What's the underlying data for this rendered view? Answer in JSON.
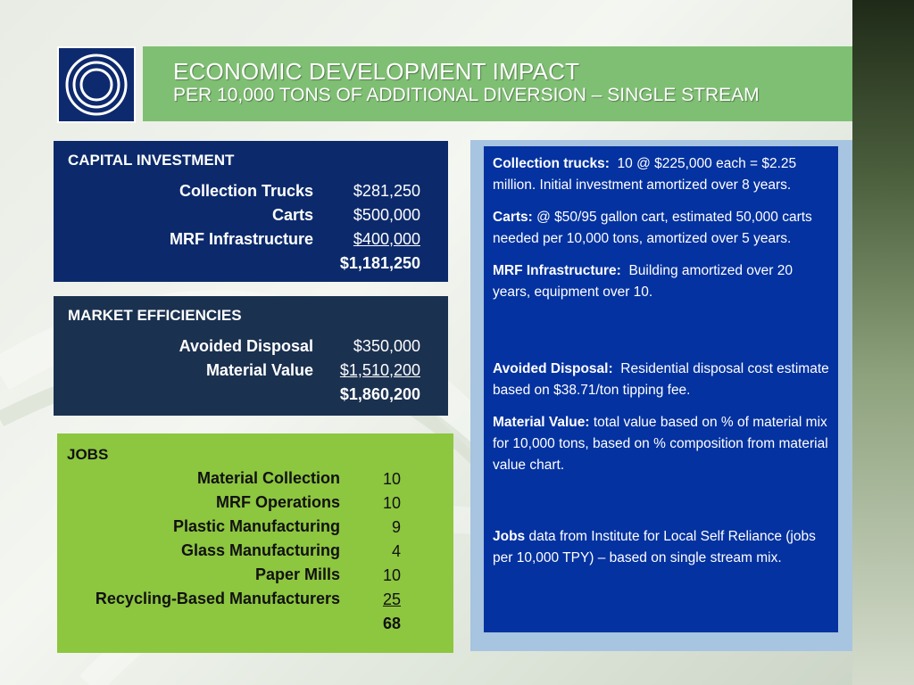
{
  "title": {
    "line1": "ECONOMIC DEVELOPMENT IMPACT",
    "line2": "PER 10,000 TONS OF ADDITIONAL DIVERSION – SINGLE STREAM"
  },
  "capital": {
    "heading": "CAPITAL INVESTMENT",
    "rows": [
      {
        "label": "Collection Trucks",
        "value": "$281,250"
      },
      {
        "label": "Carts",
        "value": "$500,000"
      },
      {
        "label": "MRF Infrastructure",
        "value": "$400,000"
      }
    ],
    "total": "$1,181,250"
  },
  "market": {
    "heading": "MARKET EFFICIENCIES",
    "rows": [
      {
        "label": "Avoided Disposal",
        "value": "$350,000"
      },
      {
        "label": "Material Value",
        "value": "$1,510,200"
      }
    ],
    "total": "$1,860,200"
  },
  "jobs": {
    "heading": "JOBS",
    "rows": [
      {
        "label": "Material Collection",
        "value": "10"
      },
      {
        "label": "MRF Operations",
        "value": "10"
      },
      {
        "label": "Plastic Manufacturing",
        "value": "9"
      },
      {
        "label": "Glass Manufacturing",
        "value": "4"
      },
      {
        "label": "Paper Mills",
        "value": "10"
      },
      {
        "label": "Recycling-Based Manufacturers",
        "value": "25"
      }
    ],
    "total": "68"
  },
  "notes": {
    "trucks_label": "Collection trucks:",
    "trucks_text": "10 @ $225,000 each = $2.25 million.  Initial investment amortized over 8 years.",
    "carts_label": "Carts:",
    "carts_text": "@ $50/95 gallon cart, estimated 50,000 carts needed per 10,000 tons, amortized over 5 years.",
    "mrf_label": "MRF Infrastructure:",
    "mrf_text": "Building amortized over 20 years, equipment over 10.",
    "disposal_label": "Avoided Disposal:",
    "disposal_text": "Residential disposal cost estimate based on $38.71/ton tipping fee.",
    "material_label": "Material Value:",
    "material_text": "total value based on % of material mix for 10,000 tons, based on % composition from material value chart.",
    "jobs_label": "Jobs",
    "jobs_text": "data from Institute for Local Self Reliance (jobs per 10,000 TPY) – based on single stream mix."
  },
  "colors": {
    "title_bar": "#7fbf73",
    "capital_box": "#0c2a6b",
    "market_box": "#1b3150",
    "jobs_box": "#8dc63f",
    "notes_box": "#0432a0"
  }
}
